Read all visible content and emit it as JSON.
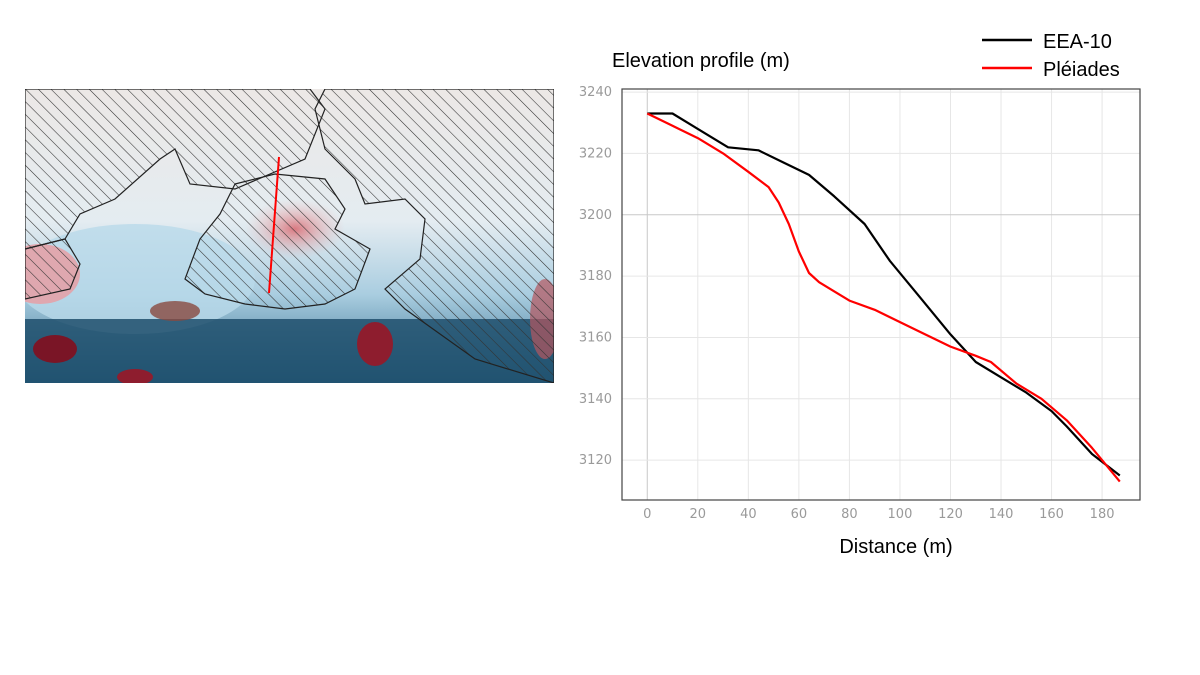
{
  "map": {
    "profile_line_color": "#ff0000",
    "hatch_color": "#333333"
  },
  "chart_data": {
    "type": "line",
    "ylabel": "Elevation profile (m)",
    "xlabel": "Distance (m)",
    "xlim": [
      -10,
      195
    ],
    "ylim": [
      3107,
      3241
    ],
    "xticks": [
      0,
      20,
      40,
      60,
      80,
      100,
      120,
      140,
      160,
      180
    ],
    "yticks": [
      3120,
      3140,
      3160,
      3180,
      3200,
      3220,
      3240
    ],
    "grid": true,
    "legend_position": "top-right",
    "series": [
      {
        "name": "EEA-10",
        "color": "#000000",
        "x": [
          0,
          10,
          20,
          32,
          44,
          54,
          64,
          74,
          86,
          96,
          108,
          120,
          130,
          140,
          150,
          160,
          166,
          176,
          187
        ],
        "y": [
          3233,
          3233,
          3228,
          3222,
          3221,
          3217,
          3213,
          3206,
          3197,
          3185,
          3173,
          3161,
          3152,
          3147,
          3142,
          3136,
          3131,
          3122,
          3115
        ]
      },
      {
        "name": "Pléiades",
        "color": "#ff0000",
        "x": [
          0,
          10,
          20,
          30,
          40,
          48,
          52,
          56,
          60,
          64,
          68,
          74,
          80,
          90,
          100,
          110,
          120,
          130,
          136,
          146,
          156,
          166,
          176,
          187
        ],
        "y": [
          3233,
          3229,
          3225,
          3220,
          3214,
          3209,
          3204,
          3197,
          3188,
          3181,
          3178,
          3175,
          3172,
          3169,
          3165,
          3161,
          3157,
          3154,
          3152,
          3145,
          3140,
          3133,
          3124,
          3113
        ]
      }
    ]
  }
}
